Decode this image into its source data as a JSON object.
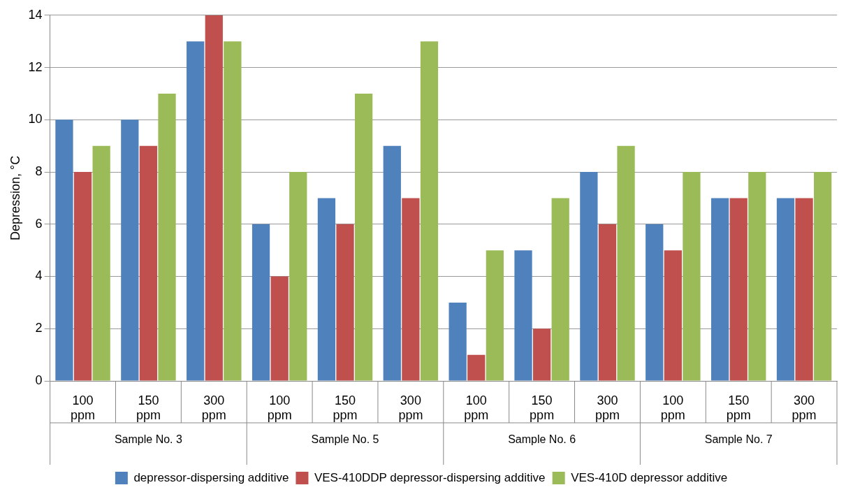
{
  "chart_data": {
    "type": "bar",
    "ylabel": "Depression, °C",
    "categories": [
      "100 ppm",
      "150 ppm",
      "300 ppm",
      "100 ppm",
      "150 ppm",
      "300 ppm",
      "100 ppm",
      "150 ppm",
      "300 ppm",
      "100 ppm",
      "150 ppm",
      "300 ppm"
    ],
    "annotations": [
      "Sample No. 3",
      "Sample No. 5",
      "Sample No. 6",
      "Sample No. 7"
    ],
    "series": [
      {
        "name": "depressor-dispersing additive",
        "color": "#4f81bd",
        "values": [
          10,
          10,
          13,
          6,
          7,
          9,
          3,
          5,
          8,
          6,
          7,
          7
        ]
      },
      {
        "name": "VES-410DDP depressor-dispersing additive",
        "color": "#c0504d",
        "values": [
          8,
          9,
          14,
          4,
          6,
          7,
          1,
          2,
          6,
          5,
          7,
          7
        ]
      },
      {
        "name": "VES-410D depressor additive",
        "color": "#9bbb59",
        "values": [
          9,
          11,
          13,
          8,
          11,
          13,
          5,
          7,
          9,
          8,
          8,
          8
        ]
      }
    ],
    "ylim": [
      0,
      14
    ],
    "yticks": [
      0,
      2,
      4,
      6,
      8,
      10,
      12,
      14
    ],
    "grid": "y",
    "legend": "bottom"
  }
}
